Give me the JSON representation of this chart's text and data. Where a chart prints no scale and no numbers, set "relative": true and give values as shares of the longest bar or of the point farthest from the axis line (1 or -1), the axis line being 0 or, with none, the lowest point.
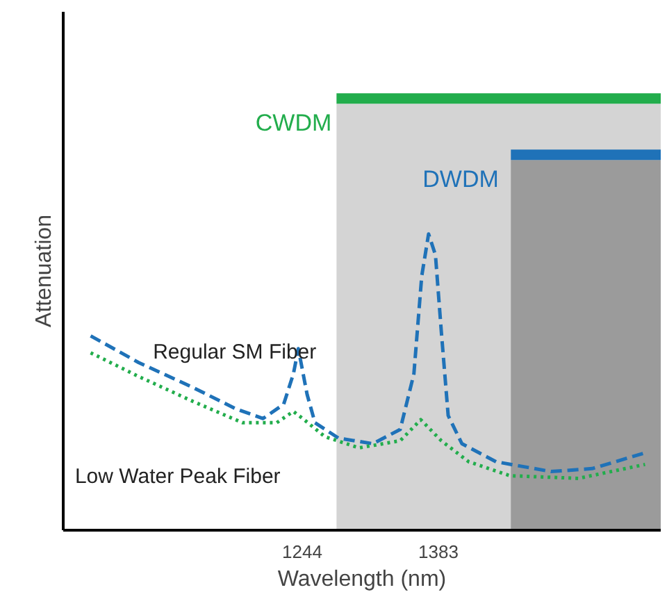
{
  "chart_data": {
    "type": "line",
    "relative": true,
    "xlabel": "Wavelength (nm)",
    "ylabel": "Attenuation",
    "xlim": [
      1000,
      1610
    ],
    "xticks": [
      1244,
      1383
    ],
    "grid": false,
    "bands": [
      {
        "axis": "x",
        "from": 1279,
        "to": 1610,
        "label": "CWDM",
        "color": "#d4d4d4"
      },
      {
        "axis": "x",
        "from": 1457,
        "to": 1610,
        "label": "DWDM",
        "color": "#9b9b9b"
      }
    ],
    "series": [
      {
        "name": "Regular SM Fiber",
        "color": "#1f72b8",
        "line_style": "dashed",
        "x": [
          1028,
          1077,
          1133,
          1176,
          1204,
          1225,
          1235,
          1240,
          1249,
          1257,
          1281,
          1316,
          1344,
          1358,
          1366,
          1373,
          1380,
          1386,
          1393,
          1407,
          1442,
          1498,
          1540,
          1597
        ],
        "values": [
          0.656,
          0.566,
          0.481,
          0.41,
          0.377,
          0.425,
          0.528,
          0.613,
          0.458,
          0.363,
          0.311,
          0.292,
          0.34,
          0.528,
          0.858,
          1.0,
          0.929,
          0.67,
          0.387,
          0.292,
          0.231,
          0.198,
          0.208,
          0.264
        ]
      },
      {
        "name": "Low Water Peak Fiber",
        "color": "#22ad4c",
        "line_style": "dotted",
        "x": [
          1028,
          1077,
          1133,
          1183,
          1218,
          1235,
          1246,
          1267,
          1302,
          1344,
          1365,
          1386,
          1414,
          1456,
          1526,
          1594
        ],
        "values": [
          0.599,
          0.519,
          0.434,
          0.363,
          0.363,
          0.401,
          0.373,
          0.316,
          0.278,
          0.302,
          0.373,
          0.302,
          0.231,
          0.184,
          0.175,
          0.222
        ]
      }
    ]
  }
}
